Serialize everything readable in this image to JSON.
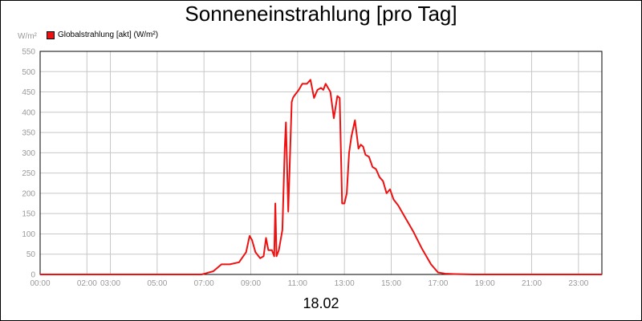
{
  "chart_data": {
    "type": "line",
    "title": "Sonneneinstrahlung [pro Tag]",
    "ylabel": "W/m²",
    "xlabel": "18.02",
    "ylim": [
      0,
      550
    ],
    "xlim": [
      0,
      24
    ],
    "grid": true,
    "legend_placement": "top-left",
    "yticks": [
      "0",
      "50",
      "100",
      "150",
      "200",
      "250",
      "300",
      "350",
      "400",
      "450",
      "500",
      "550"
    ],
    "xticks": [
      {
        "t": 0,
        "label": "00:00"
      },
      {
        "t": 2,
        "label": "02:00"
      },
      {
        "t": 3,
        "label": "03:00"
      },
      {
        "t": 5,
        "label": "05:00"
      },
      {
        "t": 7,
        "label": "07:00"
      },
      {
        "t": 9,
        "label": "09:00"
      },
      {
        "t": 11,
        "label": "11:00"
      },
      {
        "t": 13,
        "label": "13:00"
      },
      {
        "t": 15,
        "label": "15:00"
      },
      {
        "t": 17,
        "label": "17:00"
      },
      {
        "t": 19,
        "label": "19:00"
      },
      {
        "t": 21,
        "label": "21:00"
      },
      {
        "t": 23,
        "label": "23:00"
      }
    ],
    "series": [
      {
        "name": "Globalstrahlung [akt] (W/m²)",
        "color": "#ee1111",
        "x": [
          0,
          6.9,
          7.4,
          7.75,
          8.1,
          8.5,
          8.8,
          8.95,
          9.05,
          9.2,
          9.4,
          9.55,
          9.65,
          9.75,
          9.9,
          10.0,
          10.05,
          10.1,
          10.2,
          10.35,
          10.45,
          10.5,
          10.6,
          10.75,
          10.8,
          10.85,
          11.05,
          11.2,
          11.4,
          11.55,
          11.7,
          11.85,
          12.0,
          12.1,
          12.2,
          12.4,
          12.55,
          12.7,
          12.8,
          12.9,
          13.0,
          13.1,
          13.2,
          13.3,
          13.45,
          13.6,
          13.7,
          13.8,
          13.9,
          14.05,
          14.2,
          14.35,
          14.5,
          14.65,
          14.8,
          14.95,
          15.1,
          15.3,
          15.6,
          15.95,
          16.3,
          16.7,
          17.0,
          17.3,
          17.7,
          18.5,
          24.0
        ],
        "values": [
          0,
          0,
          8,
          25,
          25,
          30,
          55,
          95,
          85,
          55,
          40,
          45,
          90,
          60,
          60,
          45,
          175,
          45,
          60,
          110,
          310,
          375,
          155,
          425,
          435,
          440,
          455,
          470,
          470,
          480,
          435,
          455,
          460,
          455,
          470,
          450,
          385,
          440,
          435,
          175,
          175,
          200,
          300,
          340,
          380,
          310,
          320,
          315,
          295,
          290,
          265,
          260,
          240,
          230,
          200,
          210,
          185,
          170,
          140,
          105,
          65,
          25,
          5,
          2,
          1,
          0,
          0
        ]
      }
    ]
  }
}
